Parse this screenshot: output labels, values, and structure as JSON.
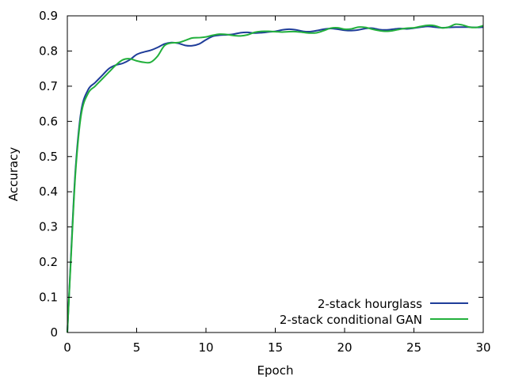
{
  "chart_data": {
    "type": "line",
    "title": "",
    "xlabel": "Epoch",
    "ylabel": "Accuracy",
    "xlim": [
      0,
      30
    ],
    "ylim": [
      0,
      0.9
    ],
    "xticks": [
      0,
      5,
      10,
      15,
      20,
      25,
      30
    ],
    "yticks": [
      0,
      0.1,
      0.2,
      0.3,
      0.4,
      0.5,
      0.6,
      0.7,
      0.8,
      0.9
    ],
    "ytick_labels": [
      "0",
      "0.1",
      "0.2",
      "0.3",
      "0.4",
      "0.5",
      "0.6",
      "0.7",
      "0.8",
      "0.9"
    ],
    "grid": false,
    "legend_position": "bottom-right",
    "series": [
      {
        "name": "2-stack hourglass",
        "color": "#1f3d99",
        "x": [
          0,
          0.3,
          0.6,
          1.0,
          1.5,
          2.0,
          2.5,
          3.0,
          3.5,
          4.0,
          4.5,
          5.0,
          5.5,
          6.0,
          6.5,
          7.0,
          7.5,
          8.0,
          8.5,
          9.0,
          9.5,
          10.0,
          10.5,
          11.0,
          11.5,
          12.0,
          12.5,
          13.0,
          13.5,
          14.0,
          14.5,
          15.0,
          15.5,
          16.0,
          16.5,
          17.0,
          17.5,
          18.0,
          18.5,
          19.0,
          19.5,
          20.0,
          20.5,
          21.0,
          21.5,
          22.0,
          22.5,
          23.0,
          23.5,
          24.0,
          24.5,
          25.0,
          25.5,
          26.0,
          26.5,
          27.0,
          27.5,
          28.0,
          28.5,
          29.0,
          29.5,
          30.0
        ],
        "values": [
          0.0,
          0.25,
          0.47,
          0.63,
          0.69,
          0.71,
          0.73,
          0.75,
          0.76,
          0.765,
          0.775,
          0.79,
          0.797,
          0.802,
          0.81,
          0.82,
          0.824,
          0.822,
          0.816,
          0.815,
          0.82,
          0.832,
          0.842,
          0.845,
          0.846,
          0.848,
          0.852,
          0.853,
          0.851,
          0.852,
          0.854,
          0.856,
          0.86,
          0.862,
          0.86,
          0.856,
          0.855,
          0.858,
          0.862,
          0.864,
          0.862,
          0.859,
          0.858,
          0.86,
          0.864,
          0.865,
          0.861,
          0.86,
          0.862,
          0.864,
          0.863,
          0.865,
          0.868,
          0.87,
          0.868,
          0.866,
          0.867,
          0.868,
          0.868,
          0.868,
          0.867,
          0.868
        ]
      },
      {
        "name": "2-stack conditional GAN",
        "color": "#22b03c",
        "x": [
          0,
          0.3,
          0.6,
          1.0,
          1.5,
          2.0,
          2.5,
          3.0,
          3.5,
          4.0,
          4.5,
          5.0,
          5.5,
          6.0,
          6.5,
          7.0,
          7.5,
          8.0,
          8.5,
          9.0,
          9.5,
          10.0,
          10.5,
          11.0,
          11.5,
          12.0,
          12.5,
          13.0,
          13.5,
          14.0,
          14.5,
          15.0,
          15.5,
          16.0,
          16.5,
          17.0,
          17.5,
          18.0,
          18.5,
          19.0,
          19.5,
          20.0,
          20.5,
          21.0,
          21.5,
          22.0,
          22.5,
          23.0,
          23.5,
          24.0,
          24.5,
          25.0,
          25.5,
          26.0,
          26.5,
          27.0,
          27.5,
          28.0,
          28.5,
          29.0,
          29.5,
          30.0
        ],
        "values": [
          0.0,
          0.24,
          0.46,
          0.62,
          0.68,
          0.7,
          0.72,
          0.74,
          0.76,
          0.775,
          0.778,
          0.772,
          0.768,
          0.768,
          0.785,
          0.815,
          0.823,
          0.824,
          0.83,
          0.837,
          0.838,
          0.84,
          0.845,
          0.848,
          0.847,
          0.844,
          0.843,
          0.846,
          0.853,
          0.856,
          0.856,
          0.855,
          0.854,
          0.855,
          0.855,
          0.853,
          0.851,
          0.852,
          0.858,
          0.865,
          0.866,
          0.862,
          0.863,
          0.868,
          0.867,
          0.862,
          0.858,
          0.856,
          0.858,
          0.862,
          0.865,
          0.866,
          0.87,
          0.873,
          0.872,
          0.866,
          0.868,
          0.876,
          0.874,
          0.868,
          0.867,
          0.872
        ]
      }
    ]
  }
}
